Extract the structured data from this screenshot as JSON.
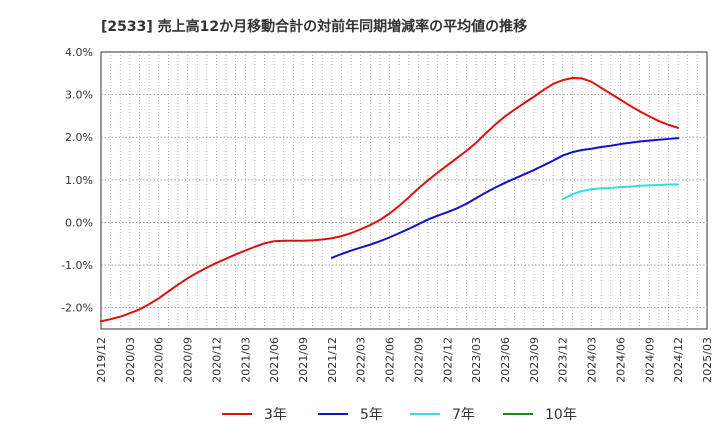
{
  "chart_data": {
    "type": "line",
    "title": "[2533]  売上高12か月移動合計の対前年同期増減率の平均値の推移",
    "xlabel": "",
    "ylabel": "",
    "ylim": [
      -2.5,
      4.0
    ],
    "y_ticks": [
      -2.0,
      -1.0,
      0.0,
      1.0,
      2.0,
      3.0,
      4.0
    ],
    "y_tick_labels": [
      "-2.0%",
      "-1.0%",
      "0.0%",
      "1.0%",
      "2.0%",
      "3.0%",
      "4.0%"
    ],
    "x_range": [
      "2019-12",
      "2025-03"
    ],
    "x_tick_labels": [
      "2019/12",
      "2020/03",
      "2020/06",
      "2020/09",
      "2020/12",
      "2021/03",
      "2021/06",
      "2021/09",
      "2021/12",
      "2022/03",
      "2022/06",
      "2022/09",
      "2022/12",
      "2023/03",
      "2023/06",
      "2023/09",
      "2023/12",
      "2024/03",
      "2024/06",
      "2024/09",
      "2024/12",
      "2025/03"
    ],
    "grid": true,
    "legend_position": "bottom",
    "series": [
      {
        "name": "3年",
        "color": "#dd1111",
        "points": [
          [
            "2019-12",
            -2.32
          ],
          [
            "2020-01",
            -2.27
          ],
          [
            "2020-02",
            -2.21
          ],
          [
            "2020-03",
            -2.13
          ],
          [
            "2020-04",
            -2.04
          ],
          [
            "2020-05",
            -1.92
          ],
          [
            "2020-06",
            -1.78
          ],
          [
            "2020-07",
            -1.62
          ],
          [
            "2020-08",
            -1.46
          ],
          [
            "2020-09",
            -1.31
          ],
          [
            "2020-10",
            -1.18
          ],
          [
            "2020-11",
            -1.06
          ],
          [
            "2020-12",
            -0.95
          ],
          [
            "2021-01",
            -0.85
          ],
          [
            "2021-02",
            -0.75
          ],
          [
            "2021-03",
            -0.66
          ],
          [
            "2021-04",
            -0.57
          ],
          [
            "2021-05",
            -0.49
          ],
          [
            "2021-06",
            -0.44
          ],
          [
            "2021-07",
            -0.43
          ],
          [
            "2021-08",
            -0.43
          ],
          [
            "2021-09",
            -0.43
          ],
          [
            "2021-10",
            -0.42
          ],
          [
            "2021-11",
            -0.4
          ],
          [
            "2021-12",
            -0.37
          ],
          [
            "2022-01",
            -0.32
          ],
          [
            "2022-02",
            -0.25
          ],
          [
            "2022-03",
            -0.16
          ],
          [
            "2022-04",
            -0.06
          ],
          [
            "2022-05",
            0.06
          ],
          [
            "2022-06",
            0.21
          ],
          [
            "2022-07",
            0.39
          ],
          [
            "2022-08",
            0.59
          ],
          [
            "2022-09",
            0.8
          ],
          [
            "2022-10",
            0.99
          ],
          [
            "2022-11",
            1.17
          ],
          [
            "2022-12",
            1.34
          ],
          [
            "2023-01",
            1.51
          ],
          [
            "2023-02",
            1.68
          ],
          [
            "2023-03",
            1.87
          ],
          [
            "2023-04",
            2.09
          ],
          [
            "2023-05",
            2.3
          ],
          [
            "2023-06",
            2.49
          ],
          [
            "2023-07",
            2.65
          ],
          [
            "2023-08",
            2.8
          ],
          [
            "2023-09",
            2.95
          ],
          [
            "2023-10",
            3.11
          ],
          [
            "2023-11",
            3.25
          ],
          [
            "2023-12",
            3.34
          ],
          [
            "2024-01",
            3.39
          ],
          [
            "2024-02",
            3.38
          ],
          [
            "2024-03",
            3.3
          ],
          [
            "2024-04",
            3.16
          ],
          [
            "2024-05",
            3.02
          ],
          [
            "2024-06",
            2.88
          ],
          [
            "2024-07",
            2.74
          ],
          [
            "2024-08",
            2.61
          ],
          [
            "2024-09",
            2.49
          ],
          [
            "2024-10",
            2.38
          ],
          [
            "2024-11",
            2.29
          ],
          [
            "2024-12",
            2.22
          ]
        ]
      },
      {
        "name": "5年",
        "color": "#1111cc",
        "points": [
          [
            "2021-12",
            -0.83
          ],
          [
            "2022-01",
            -0.74
          ],
          [
            "2022-02",
            -0.66
          ],
          [
            "2022-03",
            -0.59
          ],
          [
            "2022-04",
            -0.52
          ],
          [
            "2022-05",
            -0.44
          ],
          [
            "2022-06",
            -0.35
          ],
          [
            "2022-07",
            -0.25
          ],
          [
            "2022-08",
            -0.15
          ],
          [
            "2022-09",
            -0.04
          ],
          [
            "2022-10",
            0.07
          ],
          [
            "2022-11",
            0.16
          ],
          [
            "2022-12",
            0.24
          ],
          [
            "2023-01",
            0.33
          ],
          [
            "2023-02",
            0.44
          ],
          [
            "2023-03",
            0.57
          ],
          [
            "2023-04",
            0.7
          ],
          [
            "2023-05",
            0.82
          ],
          [
            "2023-06",
            0.93
          ],
          [
            "2023-07",
            1.03
          ],
          [
            "2023-08",
            1.13
          ],
          [
            "2023-09",
            1.23
          ],
          [
            "2023-10",
            1.34
          ],
          [
            "2023-11",
            1.45
          ],
          [
            "2023-12",
            1.57
          ],
          [
            "2024-01",
            1.65
          ],
          [
            "2024-02",
            1.7
          ],
          [
            "2024-03",
            1.73
          ],
          [
            "2024-04",
            1.77
          ],
          [
            "2024-05",
            1.8
          ],
          [
            "2024-06",
            1.84
          ],
          [
            "2024-07",
            1.87
          ],
          [
            "2024-08",
            1.9
          ],
          [
            "2024-09",
            1.92
          ],
          [
            "2024-10",
            1.94
          ],
          [
            "2024-11",
            1.96
          ],
          [
            "2024-12",
            1.98
          ]
        ]
      },
      {
        "name": "7年",
        "color": "#33dddd",
        "points": [
          [
            "2023-12",
            0.55
          ],
          [
            "2024-01",
            0.66
          ],
          [
            "2024-02",
            0.74
          ],
          [
            "2024-03",
            0.78
          ],
          [
            "2024-04",
            0.8
          ],
          [
            "2024-05",
            0.81
          ],
          [
            "2024-06",
            0.83
          ],
          [
            "2024-07",
            0.84
          ],
          [
            "2024-08",
            0.86
          ],
          [
            "2024-09",
            0.87
          ],
          [
            "2024-10",
            0.88
          ],
          [
            "2024-11",
            0.89
          ],
          [
            "2024-12",
            0.89
          ]
        ]
      },
      {
        "name": "10年",
        "color": "#228822",
        "points": []
      }
    ]
  }
}
